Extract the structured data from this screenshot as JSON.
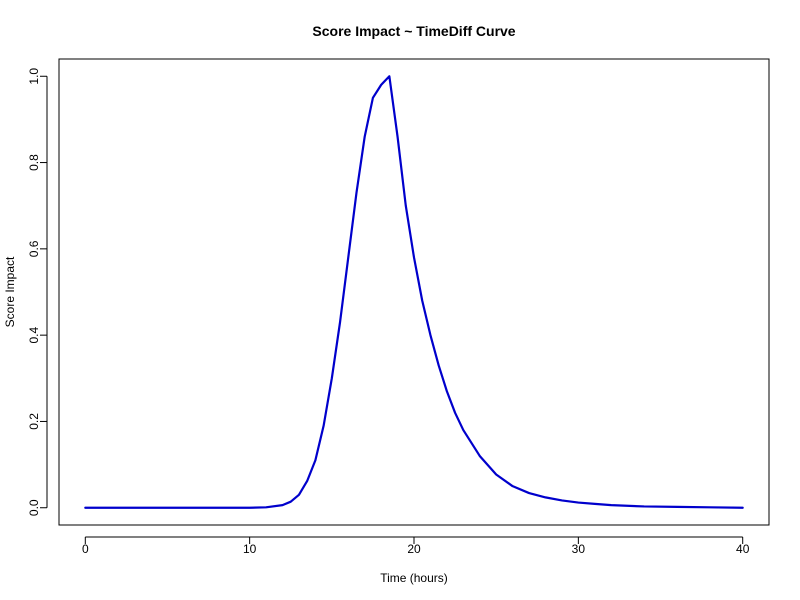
{
  "chart_data": {
    "type": "line",
    "title": "Score Impact ~ TimeDiff Curve",
    "xlabel": "Time (hours)",
    "ylabel": "Score Impact",
    "xlim": [
      -1.6,
      41.6
    ],
    "ylim": [
      -0.04,
      1.04
    ],
    "xticks": [
      "0",
      "10",
      "20",
      "30",
      "40"
    ],
    "yticks": [
      "0.0",
      "0.2",
      "0.4",
      "0.6",
      "0.8",
      "1.0"
    ],
    "grid": false,
    "legend": "none",
    "color": "#0000cc",
    "series": [
      {
        "x": [
          0,
          2,
          4,
          6,
          8,
          10,
          11,
          12,
          12.5,
          13,
          13.5,
          14,
          14.5,
          15,
          15.5,
          16,
          16.5,
          17,
          17.5,
          18,
          18.5,
          19,
          19.5,
          20,
          20.5,
          21,
          21.5,
          22,
          22.5,
          23,
          24,
          25,
          26,
          27,
          28,
          29,
          30,
          31,
          32,
          34,
          36,
          38,
          40
        ],
        "y": [
          0,
          0,
          0,
          0,
          0,
          0,
          0.001,
          0.006,
          0.014,
          0.03,
          0.062,
          0.11,
          0.19,
          0.3,
          0.43,
          0.58,
          0.73,
          0.86,
          0.95,
          0.98,
          1.0,
          0.86,
          0.7,
          0.58,
          0.48,
          0.4,
          0.33,
          0.27,
          0.22,
          0.18,
          0.12,
          0.077,
          0.05,
          0.034,
          0.024,
          0.017,
          0.012,
          0.009,
          0.006,
          0.003,
          0.002,
          0.001,
          0.0
        ]
      }
    ]
  }
}
